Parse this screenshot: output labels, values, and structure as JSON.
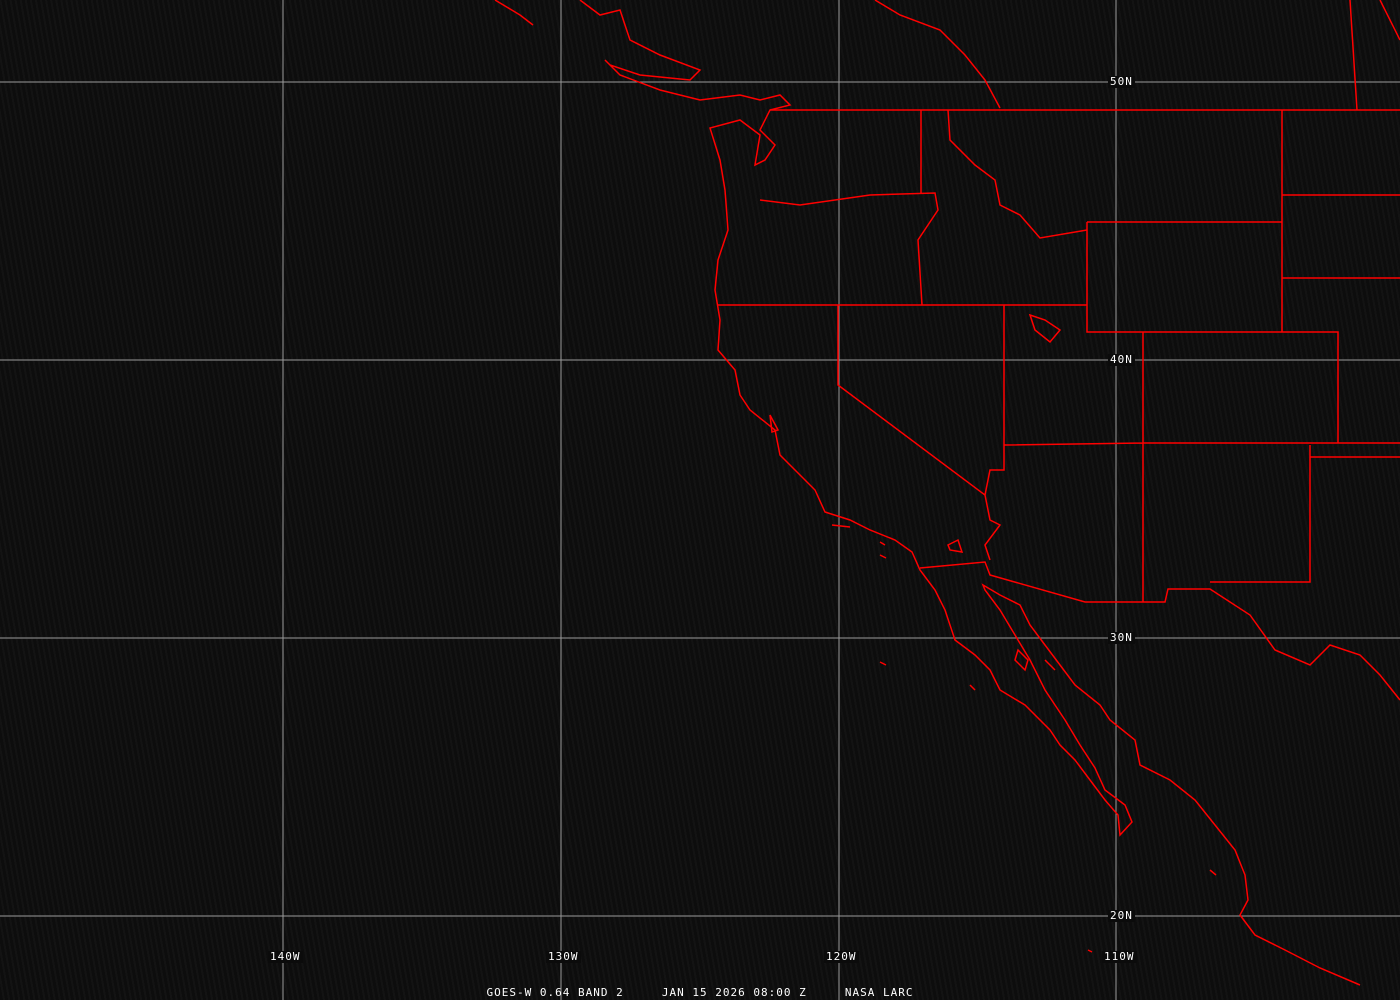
{
  "map": {
    "latitude_labels": [
      "50N",
      "40N",
      "30N",
      "20N"
    ],
    "longitude_labels": [
      "140W",
      "130W",
      "120W",
      "110W"
    ],
    "caption": {
      "satellite": "GOES-W 0.64 BAND 2",
      "datetime": "JAN 15 2026 08:00 Z",
      "source": "NASA LARC"
    },
    "colors": {
      "boundaries": "#ff0000",
      "grid": "#9a9a9a",
      "background": "#0b0b0b"
    }
  }
}
